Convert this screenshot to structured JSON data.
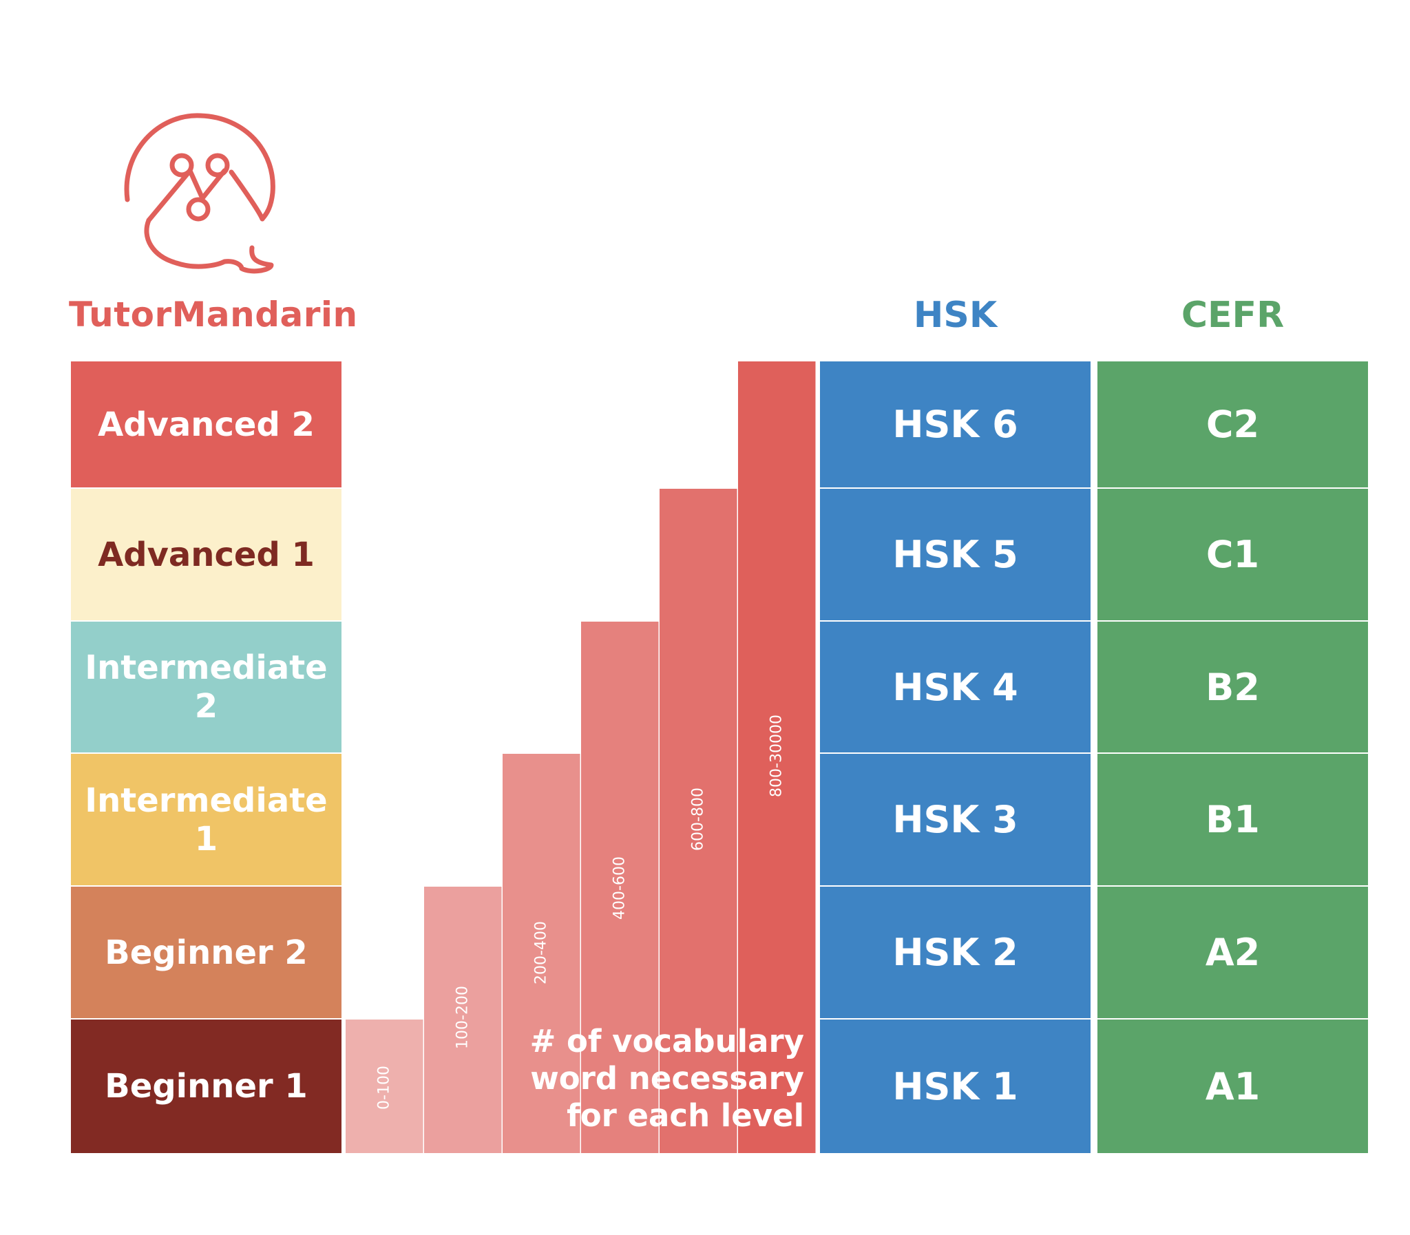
{
  "brand": {
    "name": "TutorMandarin",
    "logo_icon": "speech-bubble-nodes-icon",
    "color": "#e05f5a"
  },
  "columns": {
    "hsk_title": "HSK",
    "cefr_title": "CEFR",
    "hsk_color": "#3e84c4",
    "cefr_color": "#5ba469"
  },
  "levels": [
    {
      "label": "Advanced 2",
      "bg": "#e05f5a",
      "fg": "#ffffff"
    },
    {
      "label": "Advanced 1",
      "bg": "#fcf0cb",
      "fg": "#7e2a22"
    },
    {
      "label": "Intermediate 2",
      "bg": "#93cfca",
      "fg": "#ffffff"
    },
    {
      "label": "Intermediate 1",
      "bg": "#f0c466",
      "fg": "#ffffff"
    },
    {
      "label": "Beginner 2",
      "bg": "#d4825b",
      "fg": "#ffffff"
    },
    {
      "label": "Beginner 1",
      "bg": "#822a23",
      "fg": "#ffffff"
    }
  ],
  "hsk": [
    "HSK 6",
    "HSK 5",
    "HSK 4",
    "HSK 3",
    "HSK 2",
    "HSK 1"
  ],
  "cefr": [
    "C2",
    "C1",
    "B2",
    "B1",
    "A2",
    "A1"
  ],
  "chart_data": {
    "type": "bar",
    "categories": [
      "0-100",
      "100-200",
      "200-400",
      "400-600",
      "600-800",
      "800-30000"
    ],
    "level_steps": [
      1,
      2,
      3,
      4,
      5,
      6
    ],
    "colors": [
      "#eeb0ad",
      "#eba09e",
      "#e8908c",
      "#e5817d",
      "#e2716d",
      "#df605b"
    ],
    "annotation": [
      "# of vocabulary",
      "word necessary",
      "for each level"
    ]
  }
}
